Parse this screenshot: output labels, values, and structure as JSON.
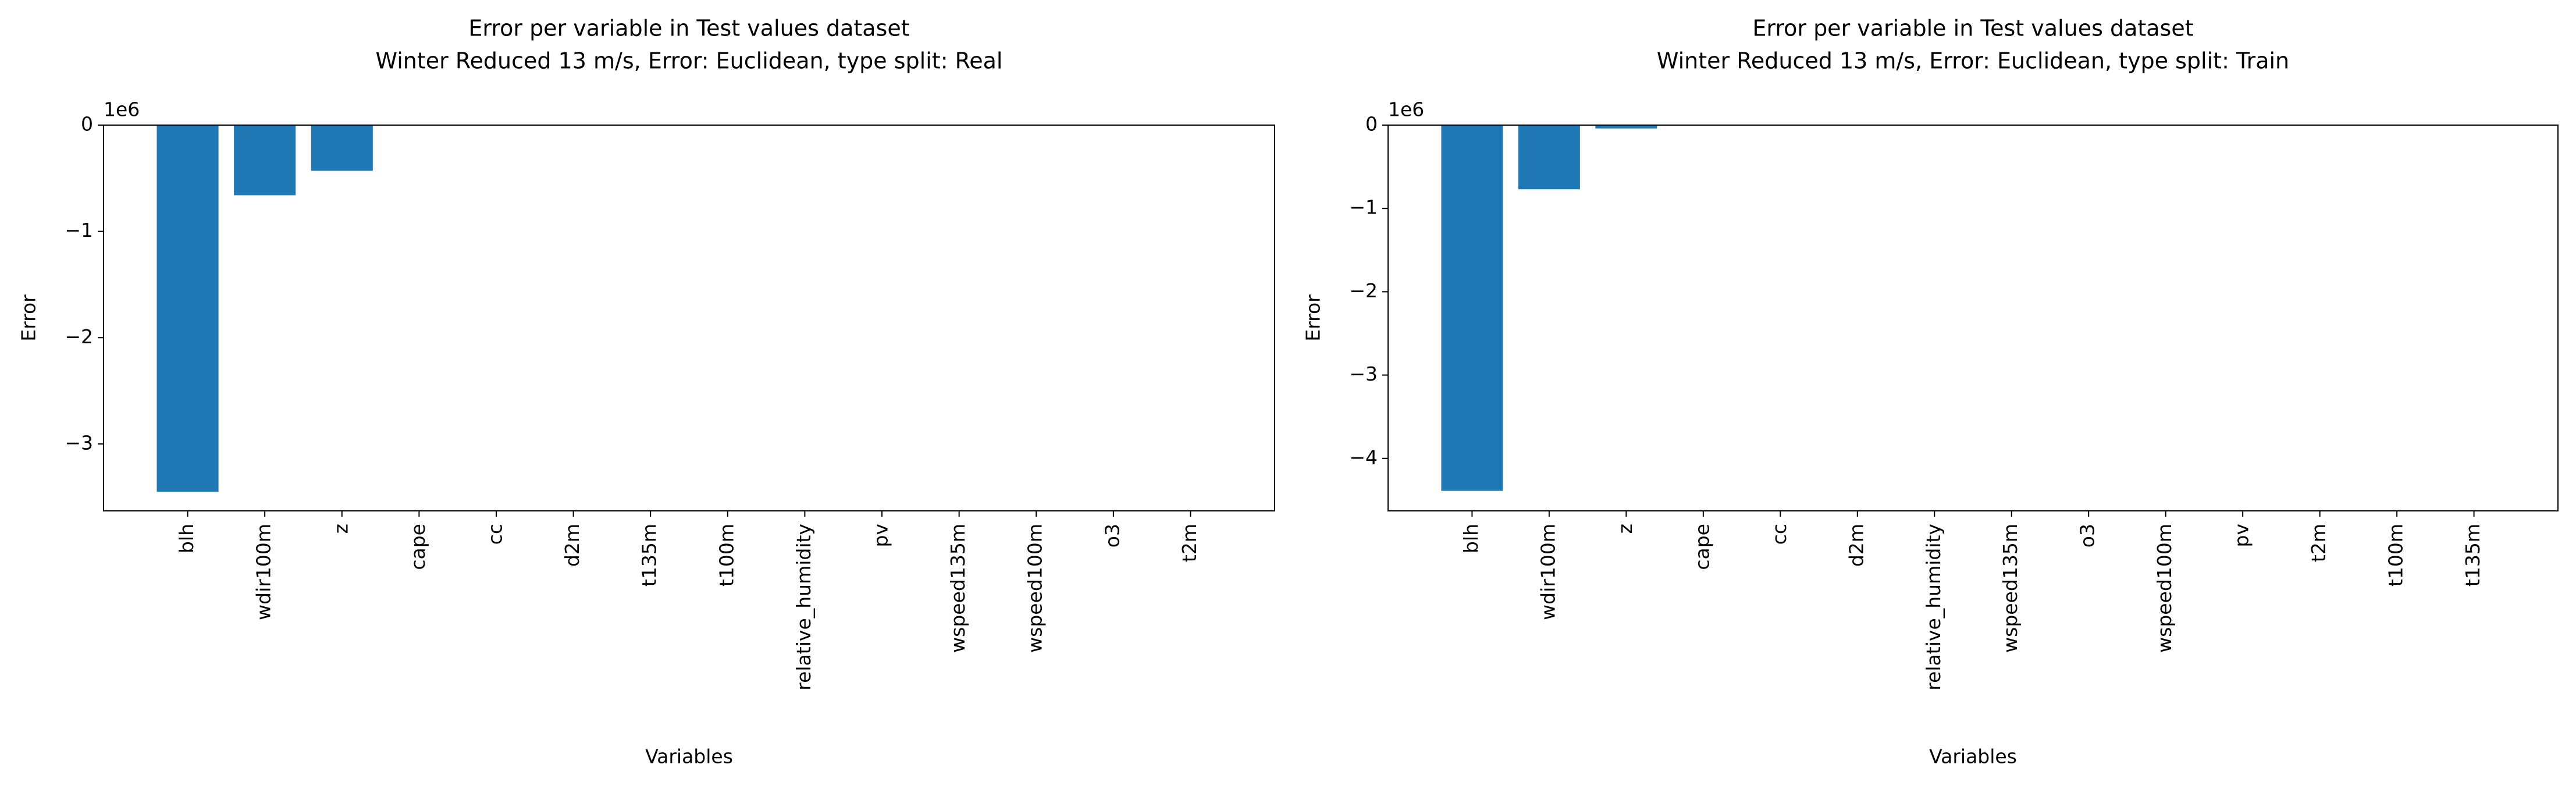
{
  "chart_data": [
    {
      "type": "bar",
      "title": "Error per variable in Test values dataset",
      "subtitle": "Winter Reduced 13 m/s, Error: Euclidean, type split: Real",
      "x_label": "Variables",
      "y_label": "Error",
      "offset_label": "1e6",
      "color": "#1f77b4",
      "categories": [
        "blh",
        "wdir100m",
        "z",
        "cape",
        "cc",
        "d2m",
        "t135m",
        "t100m",
        "relative_humidity",
        "pv",
        "wspeed135m",
        "wspeed100m",
        "o3",
        "t2m"
      ],
      "values": [
        -3.45,
        -0.66,
        -0.43,
        0,
        0,
        0,
        0,
        0,
        0,
        0,
        0,
        0,
        0,
        0
      ],
      "ylim": [
        -3.63,
        0
      ],
      "yticks": [
        {
          "value": -3,
          "label": "−3"
        },
        {
          "value": -2,
          "label": "−2"
        },
        {
          "value": -1,
          "label": "−1"
        },
        0
      ]
    },
    {
      "type": "bar",
      "title": "Error per variable in Test values dataset",
      "subtitle": "Winter Reduced 13 m/s, Error: Euclidean, type split: Train",
      "x_label": "Variables",
      "y_label": "Error",
      "offset_label": "1e6",
      "color": "#1f77b4",
      "categories": [
        "blh",
        "wdir100m",
        "z",
        "cape",
        "cc",
        "d2m",
        "relative_humidity",
        "wspeed135m",
        "o3",
        "wspeed100m",
        "pv",
        "t2m",
        "t100m",
        "t135m"
      ],
      "values": [
        -4.39,
        -0.77,
        -0.04,
        0,
        0,
        0,
        0,
        0,
        0,
        0,
        0,
        0,
        0,
        0
      ],
      "ylim": [
        -4.63,
        0
      ],
      "yticks": [
        {
          "value": -4,
          "label": "−4"
        },
        {
          "value": -3,
          "label": "−3"
        },
        {
          "value": -2,
          "label": "−2"
        },
        {
          "value": -1,
          "label": "−1"
        },
        0
      ]
    }
  ]
}
